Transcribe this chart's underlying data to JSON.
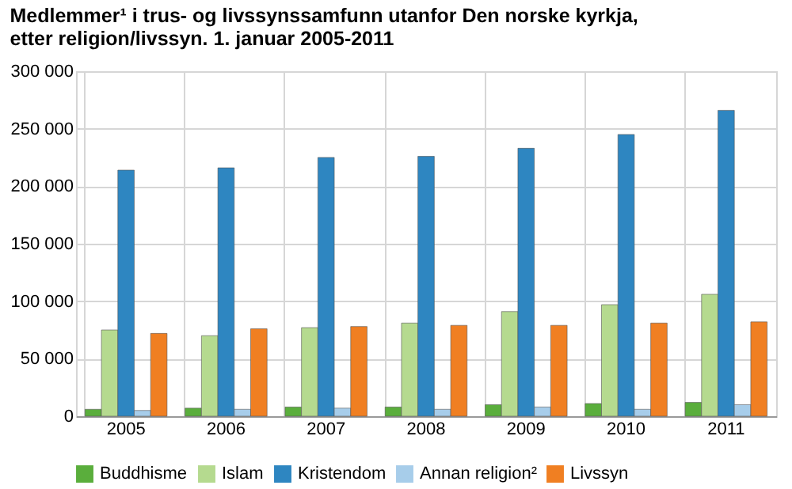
{
  "chart_data": {
    "type": "bar",
    "title": [
      "Medlemmer¹ i trus- og livssynssamfunn utanfor Den norske kyrkja,",
      "etter religion/livssyn. 1. januar 2005-2011"
    ],
    "categories": [
      "2005",
      "2006",
      "2007",
      "2008",
      "2009",
      "2010",
      "2011"
    ],
    "series": [
      {
        "name": "Buddhisme",
        "color": "#5aae3c",
        "values": [
          6000,
          7000,
          8000,
          8000,
          10000,
          11000,
          12000
        ]
      },
      {
        "name": "Islam",
        "color": "#b5da8f",
        "values": [
          75000,
          70000,
          77000,
          81000,
          91000,
          97000,
          106000
        ]
      },
      {
        "name": "Kristendom",
        "color": "#2e86c1",
        "values": [
          214000,
          216000,
          225000,
          226000,
          233000,
          245000,
          266000
        ]
      },
      {
        "name": "Annan religion²",
        "color": "#a7cdea",
        "values": [
          5000,
          6000,
          7000,
          6000,
          8000,
          6000,
          10000
        ]
      },
      {
        "name": "Livssyn",
        "color": "#f07f22",
        "values": [
          72000,
          76000,
          78000,
          79000,
          79000,
          81000,
          82000
        ]
      }
    ],
    "ylim": [
      0,
      300000
    ],
    "yticks": [
      0,
      50000,
      100000,
      150000,
      200000,
      250000,
      300000
    ],
    "grid": true,
    "legend": "bottom"
  }
}
